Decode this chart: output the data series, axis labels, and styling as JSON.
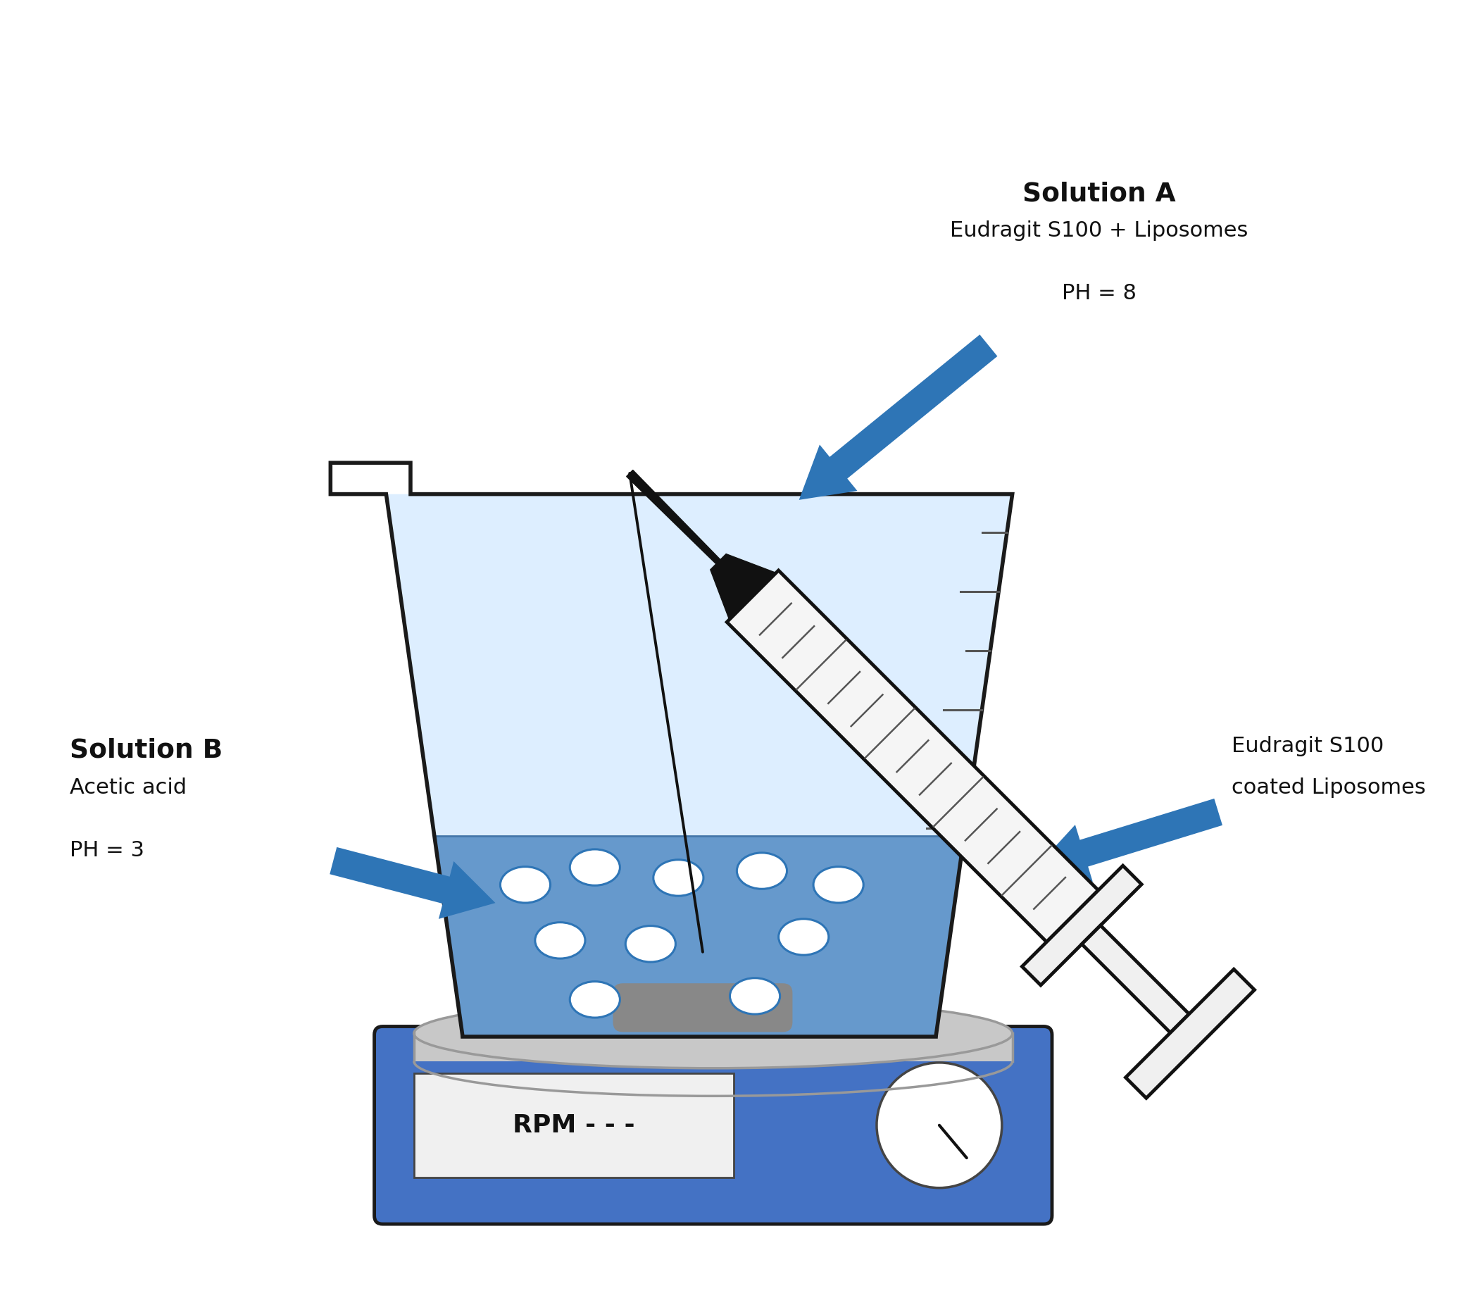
{
  "bg_color": "#ffffff",
  "arrow_color": "#2E75B6",
  "beaker_outline": "#1a1a1a",
  "beaker_fill_upper": "#ddeeff",
  "beaker_fill_lower": "#6699cc",
  "hotplate_color": "#4472C4",
  "hotplate_surface_color": "#c8c8c8",
  "rpm_box_color": "#f0f0f0",
  "rpm_box_edge": "#555555",
  "rpm_text": "RPM - - -",
  "dial_color": "#ffffff",
  "dial_edge": "#555555",
  "stir_bar_color": "#888888",
  "liposome_fill": "#ffffff",
  "liposome_edge": "#2E75B6",
  "tick_color": "#555555",
  "solution_a_title": "Solution A",
  "solution_a_line2": "Eudragit S100 + Liposomes",
  "solution_a_line3": "PH = 8",
  "solution_b_title": "Solution B",
  "solution_b_line2": "Acetic acid",
  "solution_b_line3": "PH = 3",
  "eudragit_line1": "Eudragit S100",
  "eudragit_line2": "coated Liposomes"
}
